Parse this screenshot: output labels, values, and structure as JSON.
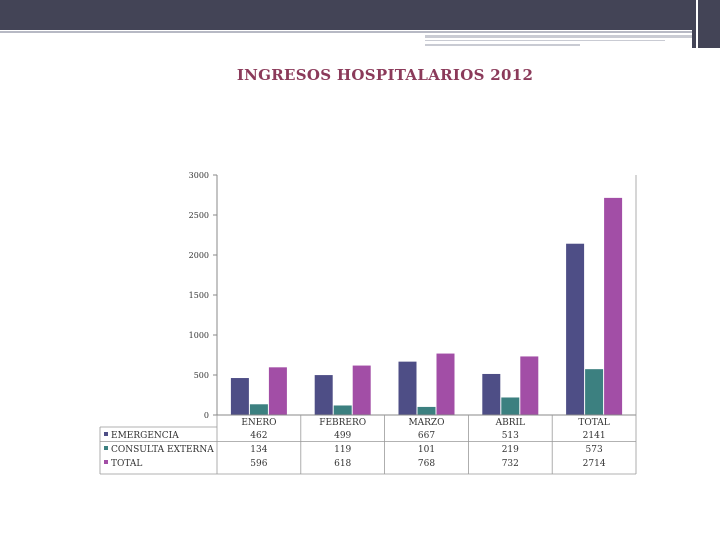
{
  "slide": {
    "title": "INGRESOS HOSPITALARIOS 2012"
  },
  "chart_data": {
    "type": "bar",
    "title": "INGRESOS HOSPITALARIOS 2012",
    "categories": [
      "ENERO",
      "FEBRERO",
      "MARZO",
      "ABRIL",
      "TOTAL"
    ],
    "series": [
      {
        "name": "EMERGENCIA",
        "values": [
          462,
          499,
          667,
          513,
          2141
        ],
        "color": "#4e4e86"
      },
      {
        "name": "CONSULTA EXTERNA",
        "values": [
          134,
          119,
          101,
          219,
          573
        ],
        "color": "#3c8080"
      },
      {
        "name": "TOTAL",
        "values": [
          596,
          618,
          768,
          732,
          2714
        ],
        "color": "#a24ea6"
      }
    ],
    "y_ticks": [
      0,
      500,
      1000,
      1500,
      2000,
      2500,
      3000
    ],
    "ylim": [
      0,
      3000
    ],
    "grid": false,
    "legend_placement": "data-table-left",
    "data_table_values": [
      [
        "462",
        "499",
        "667",
        "513",
        "2141"
      ],
      [
        "134",
        "119",
        "101",
        "219",
        "573"
      ],
      [
        "596",
        "618",
        "768",
        "732",
        "2714"
      ]
    ]
  }
}
